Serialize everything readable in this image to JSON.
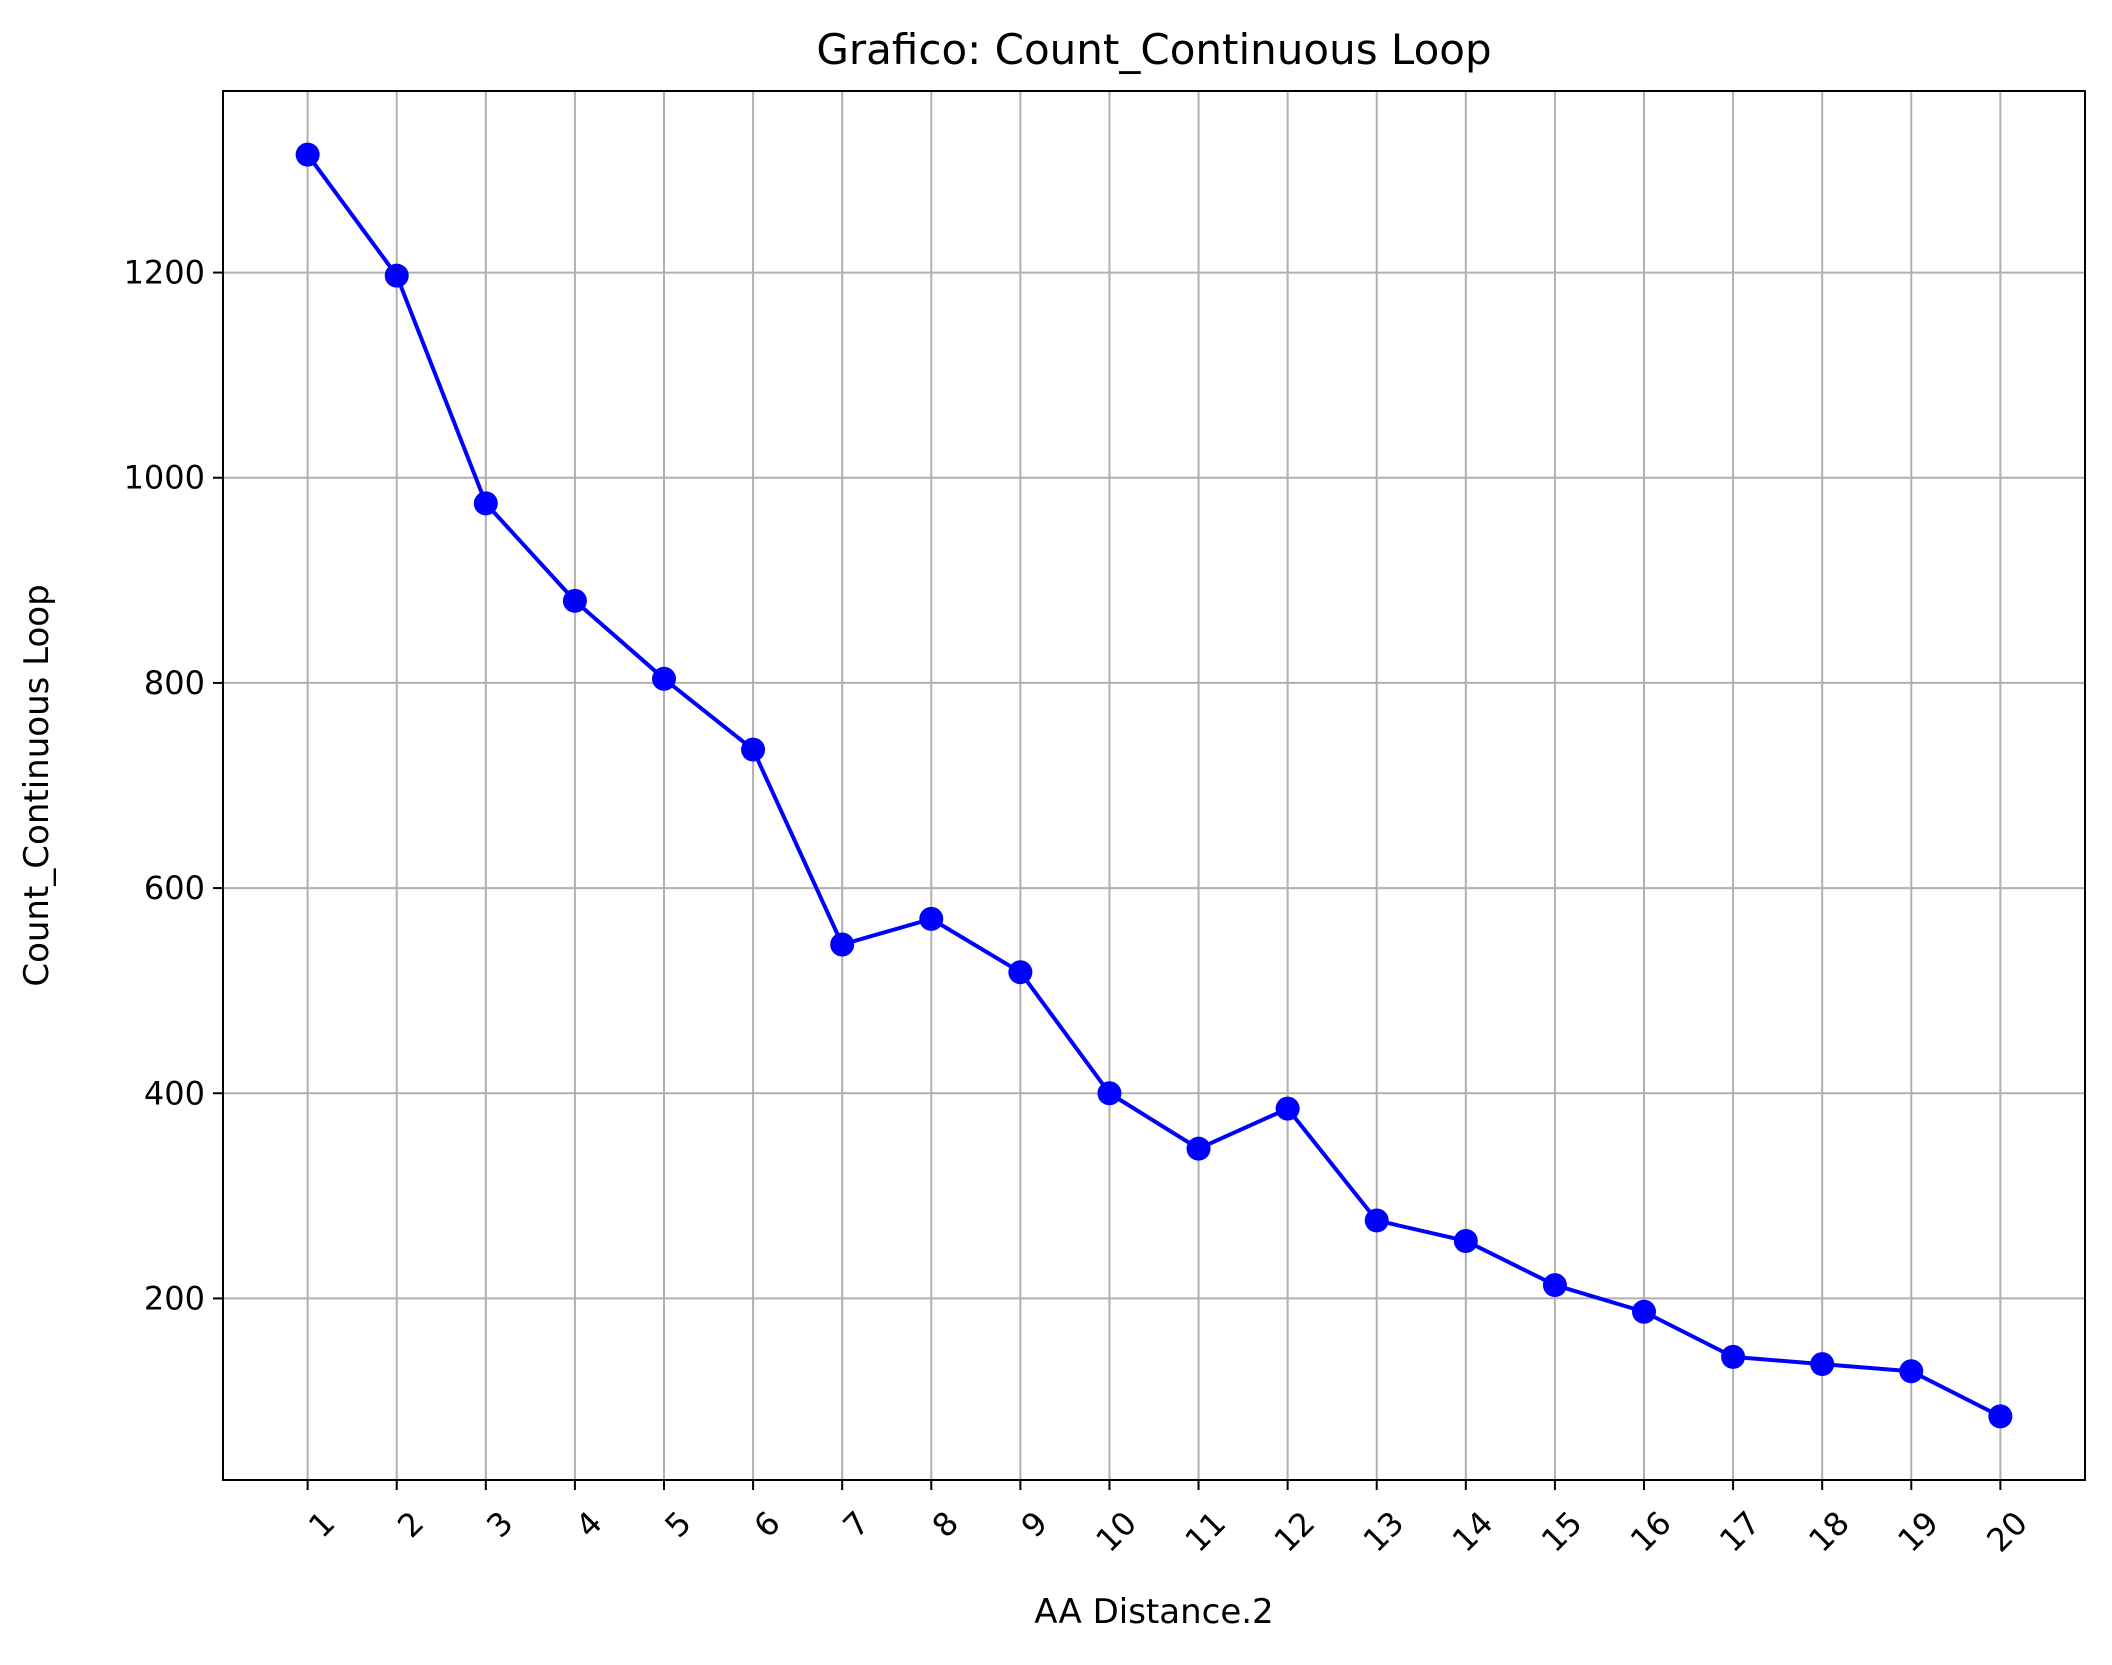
{
  "chart_data": {
    "type": "line",
    "title": "Grafico: Count_Continuous Loop",
    "xlabel": "AA Distance.2",
    "ylabel": "Count_Continuous Loop",
    "x": [
      1,
      2,
      3,
      4,
      5,
      6,
      7,
      8,
      9,
      10,
      11,
      12,
      13,
      14,
      15,
      16,
      17,
      18,
      19,
      20
    ],
    "x_tick_labels": [
      "1",
      "2",
      "3",
      "4",
      "5",
      "6",
      "7",
      "8",
      "9",
      "10",
      "11",
      "12",
      "13",
      "14",
      "15",
      "16",
      "17",
      "18",
      "19",
      "20"
    ],
    "series": [
      {
        "values": [
          1315,
          1197,
          975,
          880,
          804,
          735,
          545,
          570,
          518,
          400,
          346,
          385,
          276,
          256,
          213,
          187,
          143,
          136,
          129,
          85
        ],
        "color": "#0000ff",
        "marker": "circle"
      }
    ],
    "xlim": [
      0.05,
      20.95
    ],
    "ylim": [
      23,
      1377
    ],
    "y_ticks": [
      200,
      400,
      600,
      800,
      1000,
      1200
    ],
    "y_tick_labels": [
      "200",
      "400",
      "600",
      "800",
      "1000",
      "1200"
    ],
    "grid": true,
    "grid_color": "#b0b0b0",
    "x_tick_rotation": "45 degrees"
  }
}
